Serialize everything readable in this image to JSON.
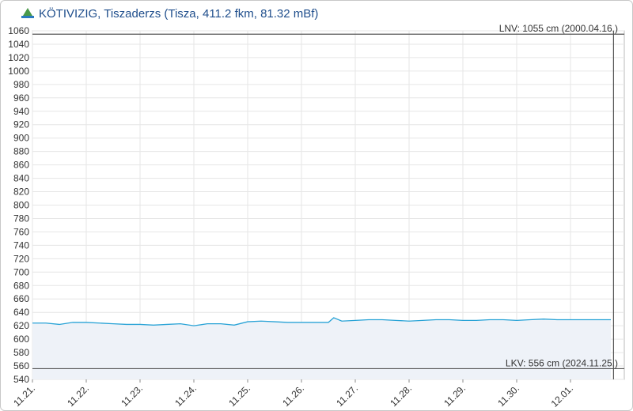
{
  "chart_data": {
    "type": "line",
    "title": "KÖTIVIZIG, Tiszaderzs (Tisza, 411.2 fkm, 81.32 mBf)",
    "x": [
      0,
      0.25,
      0.5,
      0.75,
      1,
      1.25,
      1.5,
      1.75,
      2,
      2.25,
      2.5,
      2.75,
      3,
      3.25,
      3.5,
      3.75,
      4,
      4.25,
      4.5,
      4.75,
      5,
      5.25,
      5.5,
      5.6,
      5.75,
      6,
      6.25,
      6.5,
      6.75,
      7,
      7.25,
      7.5,
      7.75,
      8,
      8.25,
      8.5,
      8.75,
      9,
      9.25,
      9.5,
      9.75,
      10,
      10.25,
      10.5,
      10.75
    ],
    "series": [
      {
        "color": "#29a3d6",
        "values": [
          624,
          624,
          622,
          625,
          625,
          624,
          623,
          622,
          622,
          621,
          622,
          623,
          620,
          623,
          623,
          621,
          626,
          627,
          626,
          625,
          625,
          625,
          625,
          632,
          627,
          628,
          629,
          629,
          628,
          627,
          628,
          629,
          629,
          628,
          628,
          629,
          629,
          628,
          629,
          630,
          629,
          629,
          629,
          629,
          629
        ]
      }
    ],
    "xlim": [
      0,
      11
    ],
    "xticks": [
      {
        "value": 0,
        "label": "11.21."
      },
      {
        "value": 1,
        "label": "11.22."
      },
      {
        "value": 2,
        "label": "11.23."
      },
      {
        "value": 3,
        "label": "11.24."
      },
      {
        "value": 4,
        "label": "11.25."
      },
      {
        "value": 5,
        "label": "11.26."
      },
      {
        "value": 6,
        "label": "11.27."
      },
      {
        "value": 7,
        "label": "11.28."
      },
      {
        "value": 8,
        "label": "11.29."
      },
      {
        "value": 9,
        "label": "11.30."
      },
      {
        "value": 10,
        "label": "12.01."
      }
    ],
    "ylim": [
      540,
      1060
    ],
    "yticks": [
      540,
      560,
      580,
      600,
      620,
      640,
      660,
      680,
      700,
      720,
      740,
      760,
      780,
      800,
      820,
      840,
      860,
      880,
      900,
      920,
      940,
      960,
      980,
      1000,
      1020,
      1040,
      1060
    ],
    "grid": true,
    "reference_lines": [
      {
        "value": 1055,
        "label": "LNV: 1055 cm (2000.04.16.)"
      },
      {
        "value": 556,
        "label": "LKV: 556 cm (2024.11.25.)"
      }
    ],
    "marker_x": 10.8
  }
}
